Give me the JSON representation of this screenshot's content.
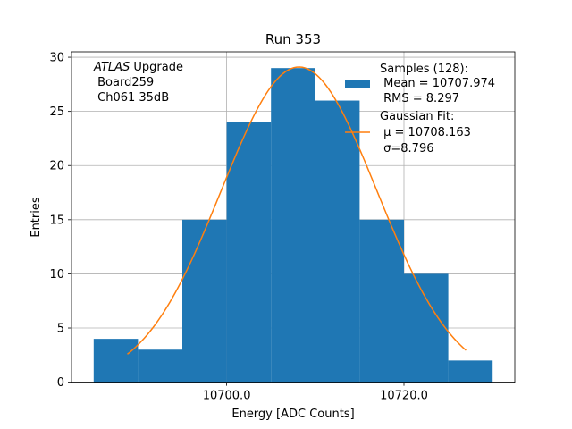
{
  "chart_data": {
    "type": "bar",
    "title": "Run 353",
    "xlabel": "Energy [ADC Counts]",
    "ylabel": "Entries",
    "xlim": [
      10682.5,
      10732.5
    ],
    "ylim": [
      0,
      30.5
    ],
    "xticks": [
      10700.0,
      10720.0
    ],
    "xtick_labels": [
      "10700.0",
      "10720.0"
    ],
    "yticks": [
      0,
      5,
      10,
      15,
      20,
      25,
      30
    ],
    "ytick_labels": [
      "0",
      "5",
      "10",
      "15",
      "20",
      "25",
      "30"
    ],
    "grid": true,
    "bin_edges": [
      10685,
      10690,
      10695,
      10700,
      10705,
      10710,
      10715,
      10720,
      10725,
      10730
    ],
    "values": [
      4,
      3,
      15,
      24,
      29,
      26,
      15,
      10,
      2
    ],
    "bar_color": "#1f77b4",
    "fit_color": "#ff7f0e",
    "fit": {
      "mu": 10708.163,
      "sigma": 8.796,
      "amplitude": 29.1,
      "x_range": [
        10688.8,
        10727.0
      ]
    },
    "annotation": {
      "italic": "ATLAS",
      "line1_rest": " Upgrade",
      "line2": " Board259",
      "line3": " Ch061 35dB"
    },
    "legend": {
      "position": "upper right",
      "samples_title": "Samples (128):",
      "samples_mean": " Mean = 10707.974",
      "samples_rms": " RMS = 8.297",
      "fit_title": "Gaussian Fit:",
      "fit_mu": " μ = 10708.163",
      "fit_sigma": " σ=8.796"
    }
  }
}
